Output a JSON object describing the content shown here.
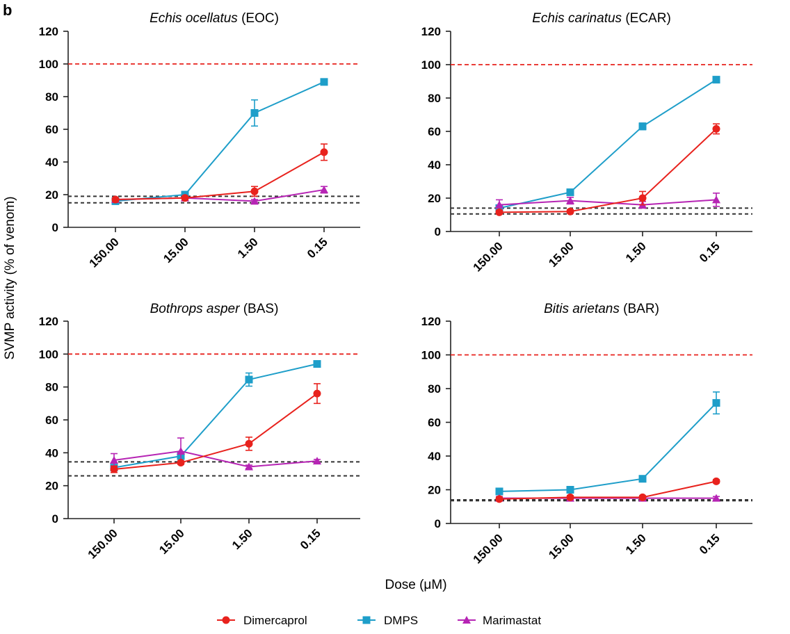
{
  "figure": {
    "panel_label": "b",
    "ylabel": "SVMP activity (% of venom)",
    "xlabel": "Dose (μM)",
    "colors": {
      "Dimercaprol": "#e8221d",
      "DMPS": "#1e9ec9",
      "Marimastat": "#b624b4",
      "reference_100": "#e8221d",
      "reference_controls": "#333333"
    }
  },
  "legend": [
    {
      "name": "Dimercaprol",
      "marker": "circle"
    },
    {
      "name": "DMPS",
      "marker": "square"
    },
    {
      "name": "Marimastat",
      "marker": "triangle"
    }
  ],
  "chart_data": [
    {
      "type": "line",
      "title_species": "Echis ocellatus",
      "title_code": "(EOC)",
      "categories": [
        "150.00",
        "15.00",
        "1.50",
        "0.15"
      ],
      "ylim": [
        0,
        120
      ],
      "yticks": [
        0,
        20,
        40,
        60,
        80,
        100,
        120
      ],
      "reference_lines": {
        "venom": 100,
        "controls": [
          19,
          15
        ]
      },
      "series": [
        {
          "name": "Dimercaprol",
          "values": [
            17,
            18,
            22,
            46
          ],
          "errors": [
            1,
            1,
            3,
            5
          ]
        },
        {
          "name": "DMPS",
          "values": [
            16,
            20,
            70,
            89
          ],
          "errors": [
            1,
            1,
            8,
            1
          ]
        },
        {
          "name": "Marimastat",
          "values": [
            17,
            18,
            16,
            23
          ],
          "errors": [
            1,
            1,
            1,
            2
          ]
        }
      ]
    },
    {
      "type": "line",
      "title_species": "Echis carinatus",
      "title_code": "(ECAR)",
      "categories": [
        "150.00",
        "15.00",
        "1.50",
        "0.15"
      ],
      "ylim": [
        0,
        120
      ],
      "yticks": [
        0,
        20,
        40,
        60,
        80,
        100,
        120
      ],
      "reference_lines": {
        "venom": 100,
        "controls": [
          14,
          10.5
        ]
      },
      "series": [
        {
          "name": "Dimercaprol",
          "values": [
            11.5,
            12,
            20,
            61.5
          ],
          "errors": [
            1,
            1,
            4,
            3
          ]
        },
        {
          "name": "DMPS",
          "values": [
            14,
            23.5,
            63,
            91
          ],
          "errors": [
            1,
            1,
            2,
            1
          ]
        },
        {
          "name": "Marimastat",
          "values": [
            16,
            18.5,
            16,
            19
          ],
          "errors": [
            3,
            2,
            2,
            4
          ]
        }
      ]
    },
    {
      "type": "line",
      "title_species": "Bothrops asper",
      "title_code": "(BAS)",
      "categories": [
        "150.00",
        "15.00",
        "1.50",
        "0.15"
      ],
      "ylim": [
        0,
        120
      ],
      "yticks": [
        0,
        20,
        40,
        60,
        80,
        100,
        120
      ],
      "reference_lines": {
        "venom": 100,
        "controls": [
          34.5,
          26
        ]
      },
      "series": [
        {
          "name": "Dimercaprol",
          "values": [
            30,
            34,
            45.5,
            76
          ],
          "errors": [
            2,
            1,
            4,
            6
          ]
        },
        {
          "name": "DMPS",
          "values": [
            31,
            38,
            84.5,
            94
          ],
          "errors": [
            1,
            1,
            4,
            1
          ]
        },
        {
          "name": "Marimastat",
          "values": [
            35.5,
            41,
            31.5,
            35
          ],
          "errors": [
            4,
            8,
            1,
            1
          ]
        }
      ]
    },
    {
      "type": "line",
      "title_species": "Bitis arietans",
      "title_code": "(BAR)",
      "categories": [
        "150.00",
        "15.00",
        "1.50",
        "0.15"
      ],
      "ylim": [
        0,
        120
      ],
      "yticks": [
        0,
        20,
        40,
        60,
        80,
        100,
        120
      ],
      "reference_lines": {
        "venom": 100,
        "controls": [
          14,
          13.5
        ]
      },
      "series": [
        {
          "name": "Dimercaprol",
          "values": [
            14.5,
            15.5,
            15.5,
            25
          ],
          "errors": [
            1,
            1,
            1,
            1
          ]
        },
        {
          "name": "DMPS",
          "values": [
            19,
            20,
            26.5,
            71.5
          ],
          "errors": [
            1,
            1,
            1,
            6.5
          ]
        },
        {
          "name": "Marimastat",
          "values": [
            15,
            15,
            15,
            15
          ],
          "errors": [
            1,
            1,
            1,
            1
          ]
        }
      ]
    }
  ]
}
